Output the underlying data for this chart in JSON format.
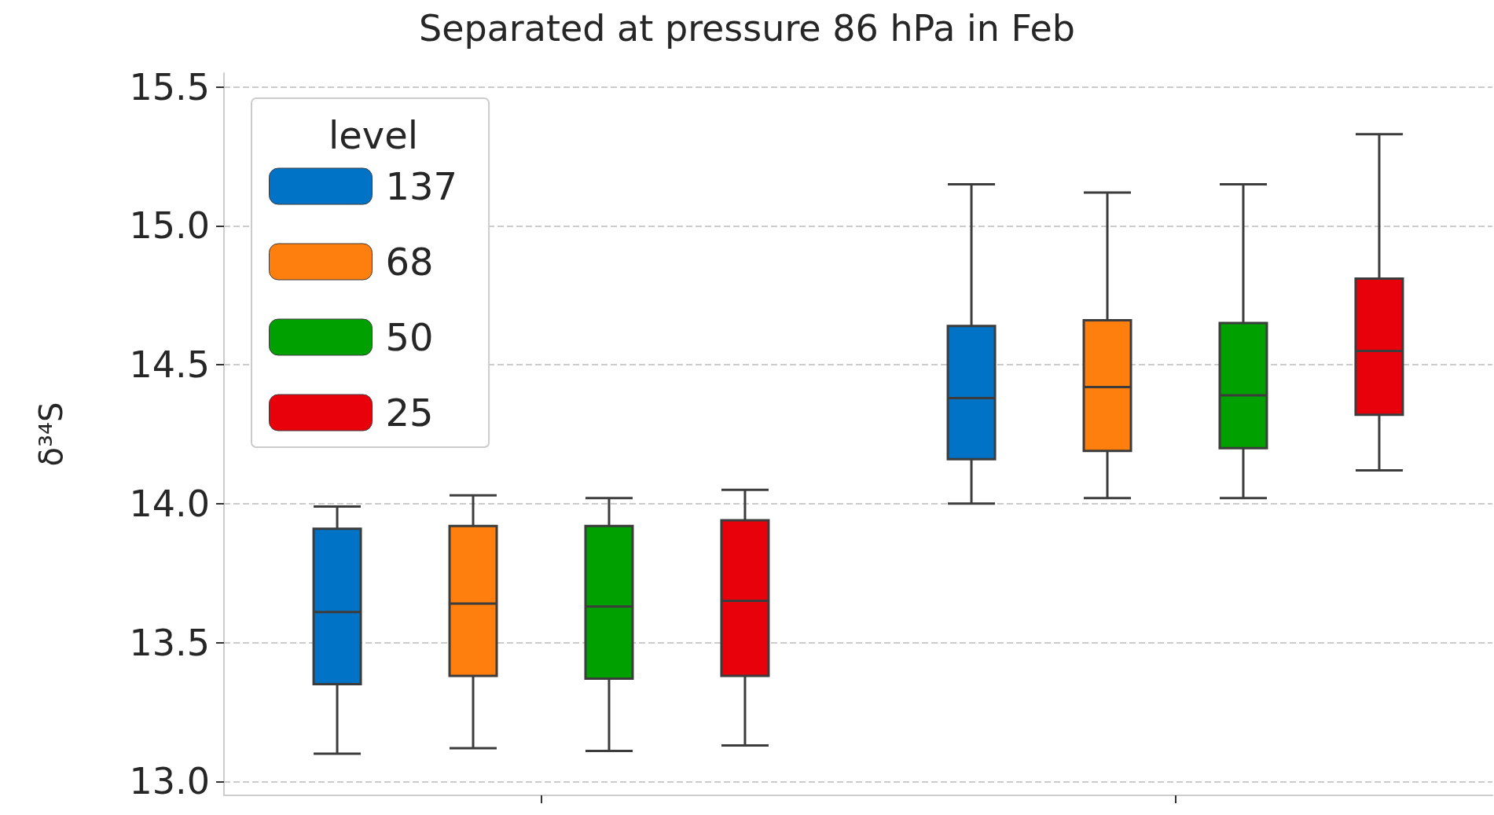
{
  "chart_data": {
    "type": "box",
    "title": "Separated at pressure 86 hPa in Feb",
    "ylabel": "δ³⁴S",
    "legend_title": "level",
    "categories": [
      null,
      null
    ],
    "series": [
      {
        "name": "137",
        "color": "#0173c7",
        "boxes": [
          {
            "low": 13.1,
            "q1": 13.35,
            "median": 13.61,
            "q3": 13.91,
            "high": 13.99
          },
          {
            "low": 14.0,
            "q1": 14.16,
            "median": 14.38,
            "q3": 14.64,
            "high": 15.15
          }
        ]
      },
      {
        "name": "68",
        "color": "#ff7f0e",
        "boxes": [
          {
            "low": 13.12,
            "q1": 13.38,
            "median": 13.64,
            "q3": 13.92,
            "high": 14.03
          },
          {
            "low": 14.02,
            "q1": 14.19,
            "median": 14.42,
            "q3": 14.66,
            "high": 15.12
          }
        ]
      },
      {
        "name": "50",
        "color": "#00a000",
        "boxes": [
          {
            "low": 13.11,
            "q1": 13.37,
            "median": 13.63,
            "q3": 13.92,
            "high": 14.02
          },
          {
            "low": 14.02,
            "q1": 14.2,
            "median": 14.39,
            "q3": 14.65,
            "high": 15.15
          }
        ]
      },
      {
        "name": "25",
        "color": "#e8000b",
        "boxes": [
          {
            "low": 13.13,
            "q1": 13.38,
            "median": 13.65,
            "q3": 13.94,
            "high": 14.05
          },
          {
            "low": 14.12,
            "q1": 14.32,
            "median": 14.55,
            "q3": 14.81,
            "high": 15.33
          }
        ]
      }
    ],
    "ylim": [
      12.95,
      15.55
    ],
    "yticks": [
      {
        "value": 13,
        "label": "13.0"
      },
      {
        "value": 13.5,
        "label": "13.5"
      },
      {
        "value": 14,
        "label": "14.0"
      },
      {
        "value": 14.5,
        "label": "14.5"
      },
      {
        "value": 15,
        "label": "15.0"
      },
      {
        "value": 15.5,
        "label": "15.5"
      }
    ],
    "grid": "y",
    "legend": "top left",
    "tick_labels": "y"
  }
}
